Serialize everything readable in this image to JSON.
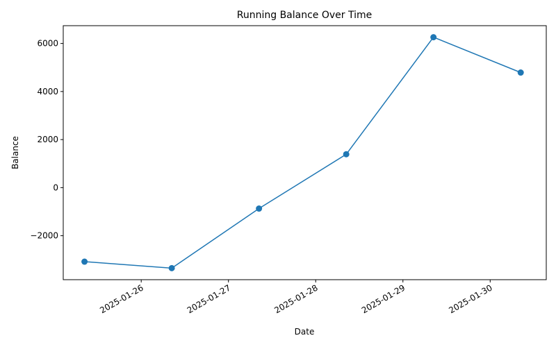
{
  "chart_data": {
    "type": "line",
    "title": "Running Balance Over Time",
    "xlabel": "Date",
    "ylabel": "Balance",
    "x_ticks": [
      "2025-01-26",
      "2025-01-27",
      "2025-01-28",
      "2025-01-29",
      "2025-01-30"
    ],
    "y_ticks": [
      -2000,
      0,
      2000,
      4000,
      6000
    ],
    "xlim": [
      "2025-01-25T02:33",
      "2025-01-30T15:26"
    ],
    "ylim": [
      -3830,
      6740
    ],
    "grid": false,
    "legend": "none",
    "series": [
      {
        "color": "#1f77b4",
        "marker": "circle",
        "points": [
          {
            "x": "2025-01-25T08:24",
            "y": -3080
          },
          {
            "x": "2025-01-26T08:24",
            "y": -3350
          },
          {
            "x": "2025-01-27T08:24",
            "y": -870
          },
          {
            "x": "2025-01-28T08:24",
            "y": 1390
          },
          {
            "x": "2025-01-29T08:24",
            "y": 6260
          },
          {
            "x": "2025-01-30T08:24",
            "y": 4790
          }
        ]
      }
    ]
  }
}
